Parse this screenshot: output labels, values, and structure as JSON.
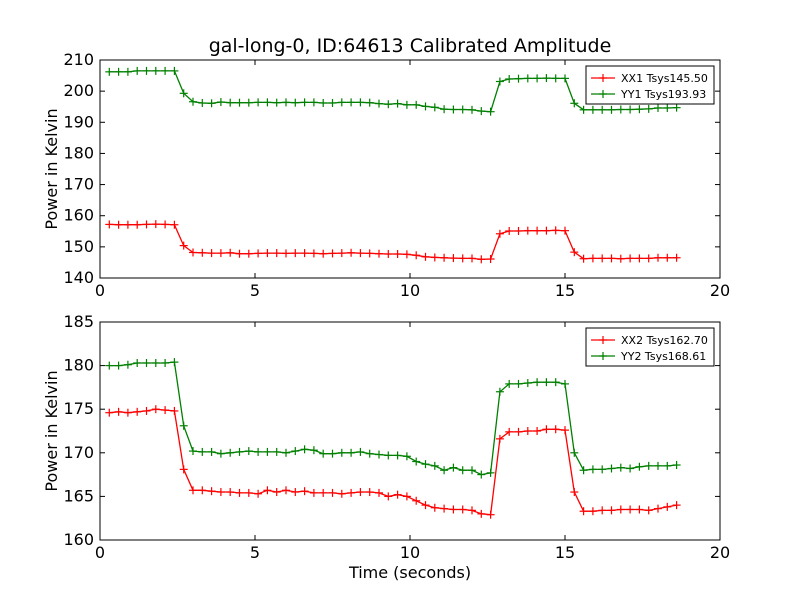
{
  "chart_data": [
    {
      "type": "line",
      "title": "gal-long-0, ID:64613 Calibrated Amplitude",
      "xlabel": "",
      "ylabel": "Power in Kelvin",
      "xlim": [
        0,
        20
      ],
      "ylim": [
        140,
        210
      ],
      "xticks": [
        "0",
        "5",
        "10",
        "15",
        "20"
      ],
      "yticks": [
        "140",
        "150",
        "160",
        "170",
        "180",
        "190",
        "200",
        "210"
      ],
      "legend_position": "top-right",
      "x": [
        0.3,
        0.6,
        0.9,
        1.2,
        1.5,
        1.8,
        2.1,
        2.4,
        2.7,
        3.0,
        3.3,
        3.6,
        3.9,
        4.2,
        4.5,
        4.8,
        5.1,
        5.4,
        5.7,
        6.0,
        6.3,
        6.6,
        6.9,
        7.2,
        7.5,
        7.8,
        8.1,
        8.4,
        8.7,
        9.0,
        9.3,
        9.6,
        9.9,
        10.2,
        10.5,
        10.8,
        11.1,
        11.4,
        11.7,
        12.0,
        12.3,
        12.6,
        12.9,
        13.2,
        13.5,
        13.8,
        14.1,
        14.4,
        14.7,
        15.0,
        15.3,
        15.6,
        15.9,
        16.2,
        16.5,
        16.8,
        17.1,
        17.4,
        17.7,
        18.0,
        18.3,
        18.6
      ],
      "series": [
        {
          "name": "XX1 Tsys145.50",
          "color": "#ff0000",
          "values": [
            157.2,
            157.1,
            157.1,
            157.1,
            157.2,
            157.3,
            157.2,
            157.1,
            150.4,
            148.2,
            148.1,
            148.0,
            148.0,
            148.1,
            147.8,
            147.8,
            147.9,
            148.0,
            148.0,
            147.9,
            148.0,
            148.0,
            147.9,
            147.8,
            147.9,
            148.0,
            148.1,
            148.0,
            147.9,
            147.8,
            147.7,
            147.7,
            147.6,
            147.3,
            146.8,
            146.6,
            146.5,
            146.4,
            146.3,
            146.3,
            146.0,
            146.1,
            154.2,
            155.1,
            155.1,
            155.2,
            155.2,
            155.2,
            155.3,
            155.2,
            148.3,
            146.2,
            146.3,
            146.3,
            146.3,
            146.2,
            146.3,
            146.3,
            146.3,
            146.5,
            146.5,
            146.5
          ]
        },
        {
          "name": "YY1 Tsys193.93",
          "color": "#008000",
          "values": [
            206.2,
            206.2,
            206.2,
            206.5,
            206.5,
            206.5,
            206.5,
            206.5,
            199.3,
            196.6,
            196.2,
            196.1,
            196.5,
            196.3,
            196.3,
            196.3,
            196.4,
            196.4,
            196.3,
            196.4,
            196.3,
            196.4,
            196.4,
            196.2,
            196.2,
            196.4,
            196.4,
            196.4,
            196.3,
            196.0,
            195.8,
            196.0,
            195.6,
            195.6,
            195.1,
            194.8,
            194.2,
            194.1,
            194.1,
            194.0,
            193.6,
            193.4,
            203.1,
            203.9,
            204.0,
            204.1,
            204.1,
            204.2,
            204.1,
            204.1,
            196.1,
            194.0,
            194.0,
            194.0,
            194.0,
            194.1,
            194.1,
            194.2,
            194.3,
            194.6,
            194.6,
            194.7
          ]
        }
      ]
    },
    {
      "type": "line",
      "title": "",
      "xlabel": "Time (seconds)",
      "ylabel": "Power in Kelvin",
      "xlim": [
        0,
        20
      ],
      "ylim": [
        160,
        185
      ],
      "xticks": [
        "0",
        "5",
        "10",
        "15",
        "20"
      ],
      "yticks": [
        "160",
        "165",
        "170",
        "175",
        "180",
        "185"
      ],
      "legend_position": "top-right",
      "x": [
        0.3,
        0.6,
        0.9,
        1.2,
        1.5,
        1.8,
        2.1,
        2.4,
        2.7,
        3.0,
        3.3,
        3.6,
        3.9,
        4.2,
        4.5,
        4.8,
        5.1,
        5.4,
        5.7,
        6.0,
        6.3,
        6.6,
        6.9,
        7.2,
        7.5,
        7.8,
        8.1,
        8.4,
        8.7,
        9.0,
        9.3,
        9.6,
        9.9,
        10.2,
        10.5,
        10.8,
        11.1,
        11.4,
        11.7,
        12.0,
        12.3,
        12.6,
        12.9,
        13.2,
        13.5,
        13.8,
        14.1,
        14.4,
        14.7,
        15.0,
        15.3,
        15.6,
        15.9,
        16.2,
        16.5,
        16.8,
        17.1,
        17.4,
        17.7,
        18.0,
        18.3,
        18.6
      ],
      "series": [
        {
          "name": "XX2 Tsys162.70",
          "color": "#ff0000",
          "values": [
            174.6,
            174.7,
            174.6,
            174.7,
            174.8,
            175.0,
            174.9,
            174.8,
            168.1,
            165.7,
            165.7,
            165.6,
            165.5,
            165.5,
            165.4,
            165.4,
            165.3,
            165.7,
            165.5,
            165.7,
            165.5,
            165.6,
            165.4,
            165.4,
            165.4,
            165.3,
            165.4,
            165.5,
            165.5,
            165.4,
            165.0,
            165.2,
            165.0,
            164.5,
            164.0,
            163.7,
            163.6,
            163.5,
            163.5,
            163.4,
            163.0,
            162.9,
            171.6,
            172.4,
            172.4,
            172.5,
            172.5,
            172.7,
            172.7,
            172.6,
            165.5,
            163.3,
            163.3,
            163.4,
            163.4,
            163.5,
            163.5,
            163.5,
            163.4,
            163.6,
            163.8,
            164.0
          ]
        },
        {
          "name": "YY2 Tsys168.61",
          "color": "#008000",
          "values": [
            180.0,
            180.0,
            180.1,
            180.3,
            180.3,
            180.3,
            180.3,
            180.4,
            173.1,
            170.2,
            170.1,
            170.1,
            169.9,
            170.0,
            170.1,
            170.2,
            170.1,
            170.1,
            170.1,
            170.0,
            170.2,
            170.4,
            170.3,
            169.9,
            169.9,
            170.0,
            170.0,
            170.1,
            169.9,
            169.8,
            169.7,
            169.7,
            169.6,
            169.0,
            168.7,
            168.5,
            168.0,
            168.3,
            168.0,
            168.0,
            167.5,
            167.7,
            177.0,
            177.9,
            177.9,
            178.0,
            178.1,
            178.1,
            178.1,
            177.9,
            170.0,
            168.0,
            168.1,
            168.1,
            168.2,
            168.3,
            168.2,
            168.4,
            168.5,
            168.5,
            168.5,
            168.6
          ]
        }
      ]
    }
  ]
}
